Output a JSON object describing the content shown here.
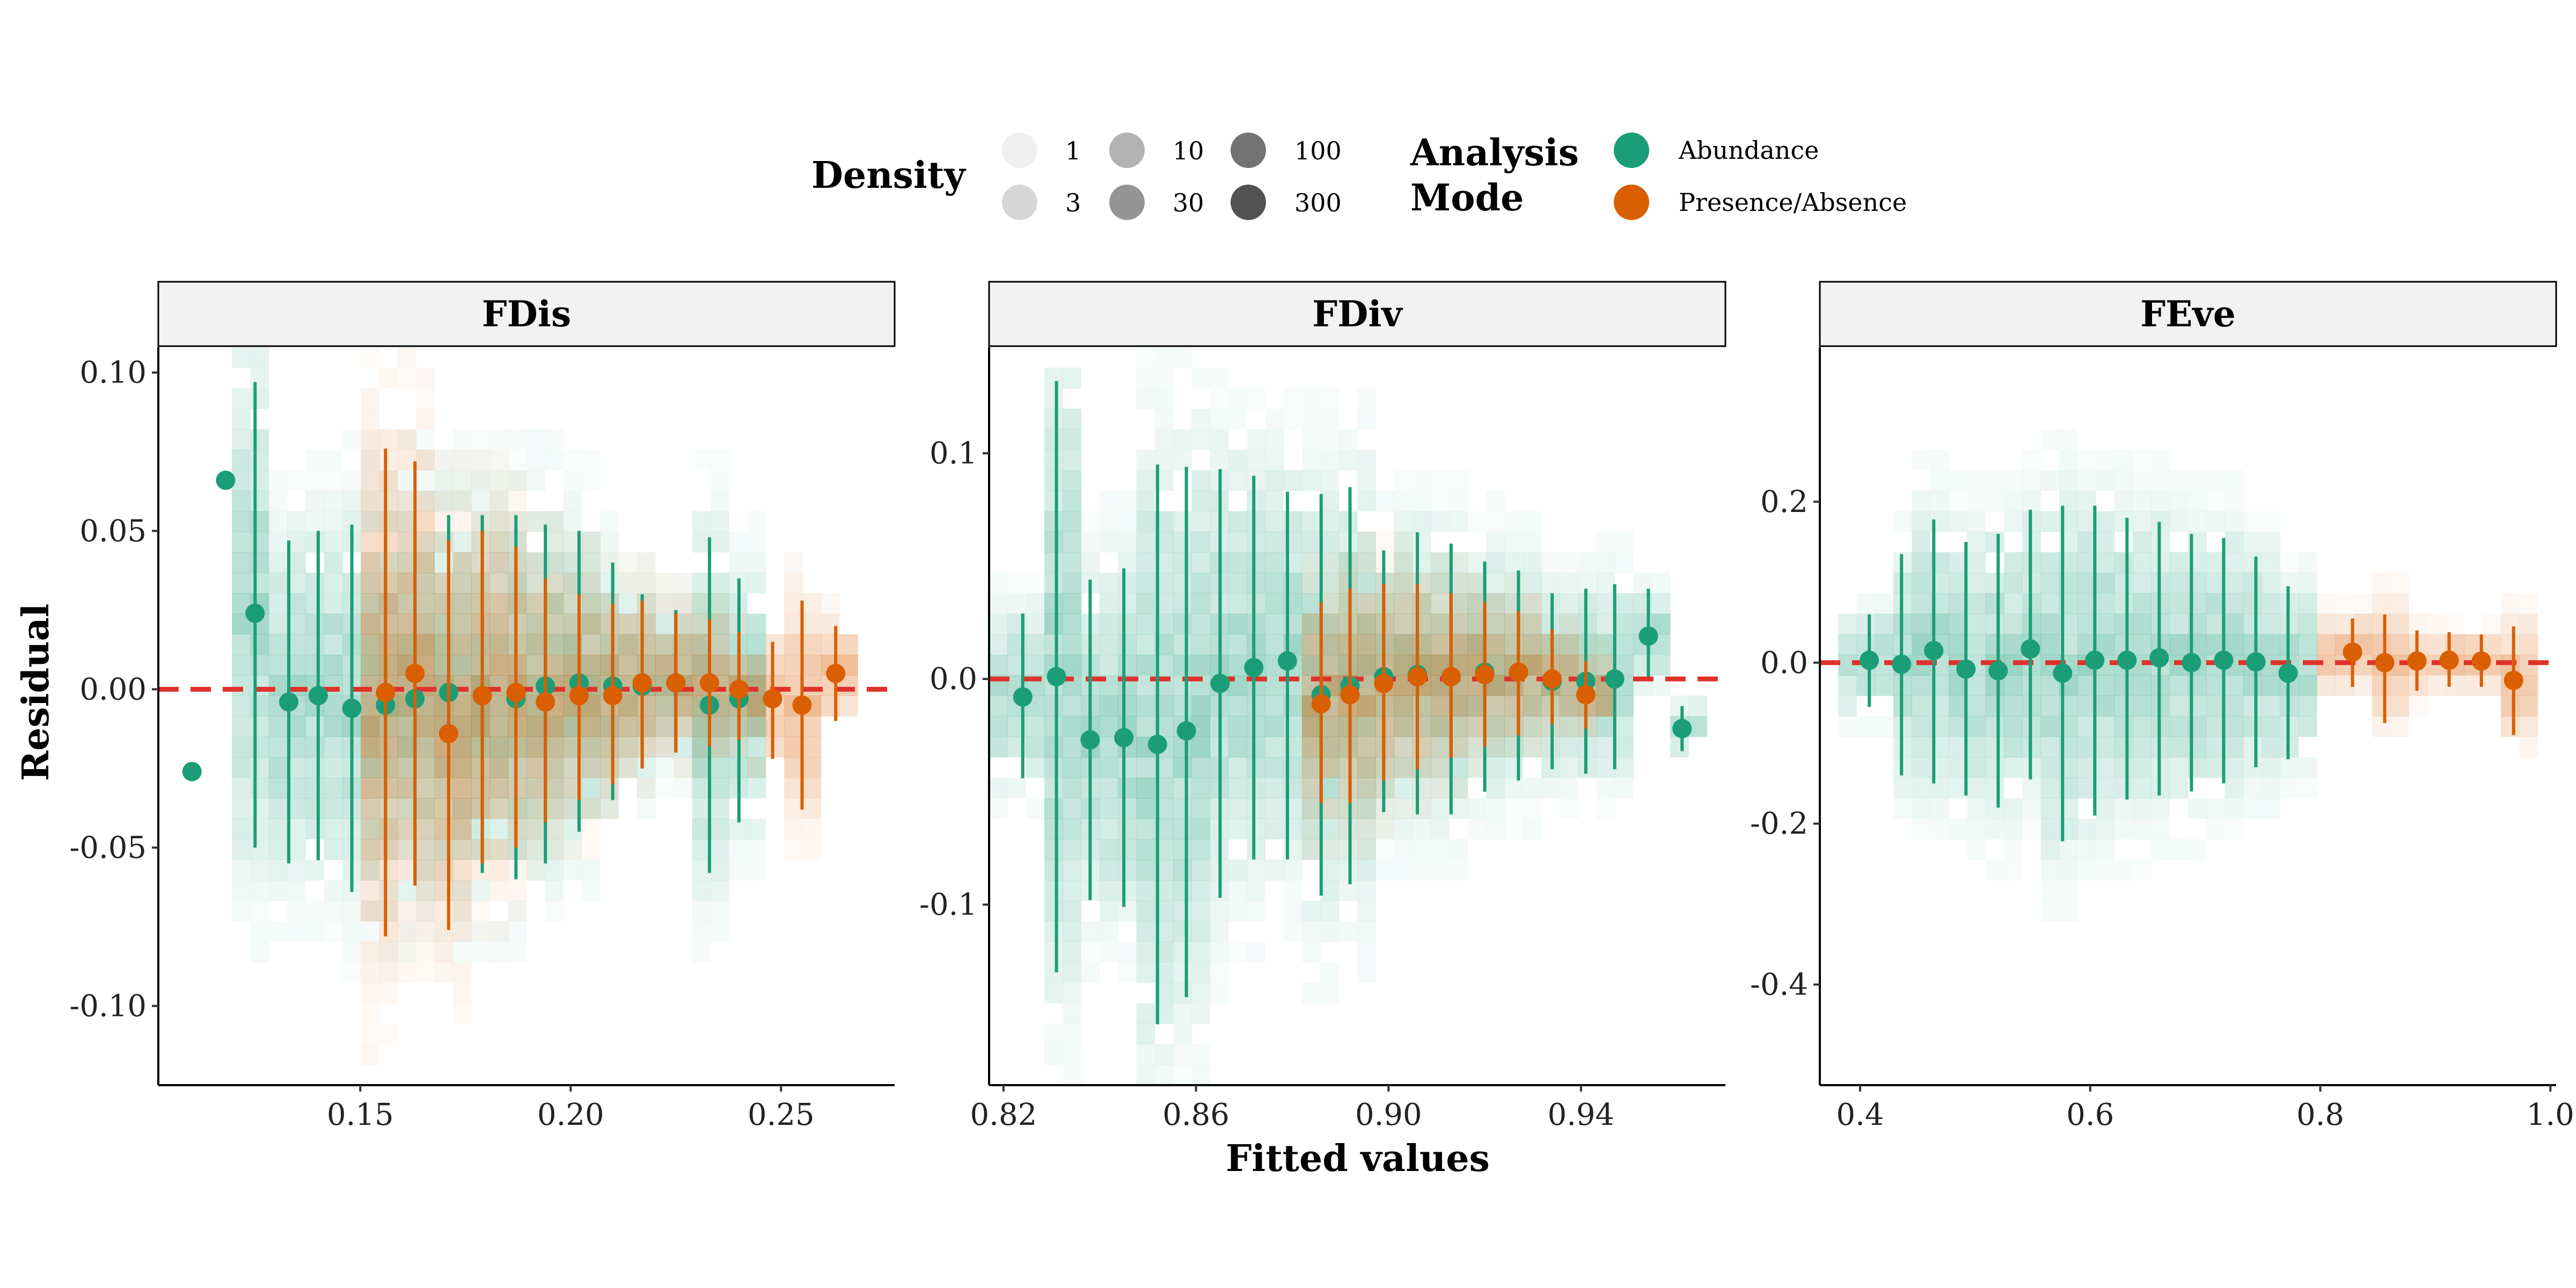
{
  "legend": {
    "density_title": "Density",
    "density_levels": [
      "1",
      "3",
      "10",
      "30",
      "100",
      "300"
    ],
    "mode_title_line1": "Analysis",
    "mode_title_line2": "Mode",
    "modes": [
      {
        "label": "Abundance",
        "color": "#1b9e77"
      },
      {
        "label": "Presence/Absence",
        "color": "#d95f02"
      }
    ]
  },
  "axes": {
    "ylabel": "Residual",
    "xlabel": "Fitted values"
  },
  "colors": {
    "abundance": "#1b9e77",
    "presence": "#d95f02",
    "zero_line": "#e0312b",
    "strip_fill": "#f2f2f2"
  },
  "chart_data": [
    {
      "type": "scatter",
      "title": "FDis",
      "xlim": [
        0.102,
        0.277
      ],
      "ylim": [
        -0.125,
        0.108
      ],
      "xticks": [
        0.15,
        0.2,
        0.25
      ],
      "xtick_labels": [
        "0.15",
        "0.20",
        "0.25"
      ],
      "yticks": [
        -0.1,
        -0.05,
        0.0,
        0.05,
        0.1
      ],
      "ytick_labels": [
        "-0.10",
        "-0.05",
        "0.00",
        "0.05",
        "0.10"
      ],
      "series": [
        {
          "name": "Abundance",
          "points": [
            {
              "x": 0.11,
              "y": -0.026
            },
            {
              "x": 0.118,
              "y": 0.066
            },
            {
              "x": 0.125,
              "y": 0.024,
              "lo": -0.05,
              "hi": 0.097
            },
            {
              "x": 0.133,
              "y": -0.004,
              "lo": -0.055,
              "hi": 0.047
            },
            {
              "x": 0.14,
              "y": -0.002,
              "lo": -0.054,
              "hi": 0.05
            },
            {
              "x": 0.148,
              "y": -0.006,
              "lo": -0.064,
              "hi": 0.052
            },
            {
              "x": 0.156,
              "y": -0.005,
              "lo": -0.06,
              "hi": 0.05
            },
            {
              "x": 0.163,
              "y": -0.003,
              "lo": -0.06,
              "hi": 0.052
            },
            {
              "x": 0.171,
              "y": -0.001,
              "lo": -0.06,
              "hi": 0.055
            },
            {
              "x": 0.179,
              "y": -0.002,
              "lo": -0.058,
              "hi": 0.055
            },
            {
              "x": 0.187,
              "y": -0.003,
              "lo": -0.06,
              "hi": 0.055
            },
            {
              "x": 0.194,
              "y": 0.001,
              "lo": -0.055,
              "hi": 0.052
            },
            {
              "x": 0.202,
              "y": 0.002,
              "lo": -0.045,
              "hi": 0.05
            },
            {
              "x": 0.21,
              "y": 0.001,
              "lo": -0.035,
              "hi": 0.04
            },
            {
              "x": 0.217,
              "y": 0.001,
              "lo": -0.025,
              "hi": 0.03
            },
            {
              "x": 0.225,
              "y": 0.002,
              "lo": -0.02,
              "hi": 0.025
            },
            {
              "x": 0.233,
              "y": -0.005,
              "lo": -0.058,
              "hi": 0.048
            },
            {
              "x": 0.24,
              "y": -0.003,
              "lo": -0.042,
              "hi": 0.035
            }
          ]
        },
        {
          "name": "Presence/Absence",
          "points": [
            {
              "x": 0.156,
              "y": -0.001,
              "lo": -0.078,
              "hi": 0.076
            },
            {
              "x": 0.163,
              "y": 0.005,
              "lo": -0.062,
              "hi": 0.072
            },
            {
              "x": 0.171,
              "y": -0.014,
              "lo": -0.076,
              "hi": 0.047
            },
            {
              "x": 0.179,
              "y": -0.002,
              "lo": -0.055,
              "hi": 0.05
            },
            {
              "x": 0.187,
              "y": -0.001,
              "lo": -0.05,
              "hi": 0.045
            },
            {
              "x": 0.194,
              "y": -0.004,
              "lo": -0.042,
              "hi": 0.035
            },
            {
              "x": 0.202,
              "y": -0.002,
              "lo": -0.035,
              "hi": 0.03
            },
            {
              "x": 0.21,
              "y": -0.002,
              "lo": -0.03,
              "hi": 0.027
            },
            {
              "x": 0.217,
              "y": 0.002,
              "lo": -0.025,
              "hi": 0.028
            },
            {
              "x": 0.225,
              "y": 0.002,
              "lo": -0.02,
              "hi": 0.024
            },
            {
              "x": 0.233,
              "y": 0.002,
              "lo": -0.018,
              "hi": 0.022
            },
            {
              "x": 0.24,
              "y": 0.0,
              "lo": -0.016,
              "hi": 0.018
            },
            {
              "x": 0.248,
              "y": -0.003,
              "lo": -0.022,
              "hi": 0.015
            },
            {
              "x": 0.255,
              "y": -0.005,
              "lo": -0.038,
              "hi": 0.028
            },
            {
              "x": 0.263,
              "y": 0.005,
              "lo": -0.01,
              "hi": 0.02
            }
          ]
        }
      ]
    },
    {
      "type": "scatter",
      "title": "FDiv",
      "xlim": [
        0.817,
        0.97
      ],
      "ylim": [
        -0.18,
        0.147
      ],
      "xticks": [
        0.82,
        0.86,
        0.9,
        0.94
      ],
      "xtick_labels": [
        "0.82",
        "0.86",
        "0.90",
        "0.94"
      ],
      "yticks": [
        -0.1,
        0.0,
        0.1
      ],
      "ytick_labels": [
        "-0.1",
        "0.0",
        "0.1"
      ],
      "series": [
        {
          "name": "Abundance",
          "points": [
            {
              "x": 0.824,
              "y": -0.008,
              "lo": -0.044,
              "hi": 0.029
            },
            {
              "x": 0.831,
              "y": 0.001,
              "lo": -0.13,
              "hi": 0.132
            },
            {
              "x": 0.838,
              "y": -0.027,
              "lo": -0.098,
              "hi": 0.044
            },
            {
              "x": 0.845,
              "y": -0.026,
              "lo": -0.101,
              "hi": 0.049
            },
            {
              "x": 0.852,
              "y": -0.029,
              "lo": -0.153,
              "hi": 0.095
            },
            {
              "x": 0.858,
              "y": -0.023,
              "lo": -0.141,
              "hi": 0.094
            },
            {
              "x": 0.865,
              "y": -0.002,
              "lo": -0.097,
              "hi": 0.093
            },
            {
              "x": 0.872,
              "y": 0.005,
              "lo": -0.08,
              "hi": 0.09
            },
            {
              "x": 0.879,
              "y": 0.008,
              "lo": -0.08,
              "hi": 0.083
            },
            {
              "x": 0.886,
              "y": -0.007,
              "lo": -0.096,
              "hi": 0.082
            },
            {
              "x": 0.892,
              "y": -0.003,
              "lo": -0.091,
              "hi": 0.085
            },
            {
              "x": 0.899,
              "y": 0.001,
              "lo": -0.059,
              "hi": 0.057
            },
            {
              "x": 0.906,
              "y": 0.002,
              "lo": -0.06,
              "hi": 0.065
            },
            {
              "x": 0.913,
              "y": 0.001,
              "lo": -0.06,
              "hi": 0.06
            },
            {
              "x": 0.92,
              "y": 0.003,
              "lo": -0.05,
              "hi": 0.052
            },
            {
              "x": 0.927,
              "y": 0.003,
              "lo": -0.045,
              "hi": 0.048
            },
            {
              "x": 0.934,
              "y": -0.001,
              "lo": -0.04,
              "hi": 0.038
            },
            {
              "x": 0.941,
              "y": -0.001,
              "lo": -0.042,
              "hi": 0.04
            },
            {
              "x": 0.947,
              "y": 0.0,
              "lo": -0.04,
              "hi": 0.042
            },
            {
              "x": 0.954,
              "y": 0.019,
              "lo": 0.001,
              "hi": 0.04
            },
            {
              "x": 0.961,
              "y": -0.022,
              "lo": -0.032,
              "hi": -0.012
            }
          ]
        },
        {
          "name": "Presence/Absence",
          "points": [
            {
              "x": 0.886,
              "y": -0.011,
              "lo": -0.055,
              "hi": 0.034
            },
            {
              "x": 0.892,
              "y": -0.007,
              "lo": -0.055,
              "hi": 0.04
            },
            {
              "x": 0.899,
              "y": -0.002,
              "lo": -0.045,
              "hi": 0.042
            },
            {
              "x": 0.906,
              "y": 0.001,
              "lo": -0.04,
              "hi": 0.042
            },
            {
              "x": 0.913,
              "y": 0.001,
              "lo": -0.035,
              "hi": 0.038
            },
            {
              "x": 0.92,
              "y": 0.002,
              "lo": -0.03,
              "hi": 0.034
            },
            {
              "x": 0.927,
              "y": 0.003,
              "lo": -0.025,
              "hi": 0.03
            },
            {
              "x": 0.934,
              "y": 0.0,
              "lo": -0.02,
              "hi": 0.022
            },
            {
              "x": 0.941,
              "y": -0.007,
              "lo": -0.022,
              "hi": 0.008
            }
          ]
        }
      ]
    },
    {
      "type": "scatter",
      "title": "FEve",
      "xlim": [
        0.365,
        1.005
      ],
      "ylim": [
        -0.525,
        0.392
      ],
      "xticks": [
        0.4,
        0.6,
        0.8,
        1.0
      ],
      "xtick_labels": [
        "0.4",
        "0.6",
        "0.8",
        "1.0"
      ],
      "yticks": [
        -0.4,
        -0.2,
        0.0,
        0.2
      ],
      "ytick_labels": [
        "-0.4",
        "-0.2",
        "0.0",
        "0.2"
      ],
      "series": [
        {
          "name": "Abundance",
          "points": [
            {
              "x": 0.408,
              "y": 0.003,
              "lo": -0.055,
              "hi": 0.06
            },
            {
              "x": 0.436,
              "y": -0.002,
              "lo": -0.14,
              "hi": 0.135
            },
            {
              "x": 0.464,
              "y": 0.015,
              "lo": -0.15,
              "hi": 0.178
            },
            {
              "x": 0.492,
              "y": -0.008,
              "lo": -0.165,
              "hi": 0.15
            },
            {
              "x": 0.52,
              "y": -0.01,
              "lo": -0.18,
              "hi": 0.16
            },
            {
              "x": 0.548,
              "y": 0.017,
              "lo": -0.145,
              "hi": 0.19
            },
            {
              "x": 0.576,
              "y": -0.013,
              "lo": -0.222,
              "hi": 0.195
            },
            {
              "x": 0.604,
              "y": 0.003,
              "lo": -0.19,
              "hi": 0.195
            },
            {
              "x": 0.632,
              "y": 0.003,
              "lo": -0.17,
              "hi": 0.18
            },
            {
              "x": 0.66,
              "y": 0.006,
              "lo": -0.165,
              "hi": 0.175
            },
            {
              "x": 0.688,
              "y": 0.0,
              "lo": -0.16,
              "hi": 0.16
            },
            {
              "x": 0.716,
              "y": 0.003,
              "lo": -0.15,
              "hi": 0.155
            },
            {
              "x": 0.744,
              "y": 0.001,
              "lo": -0.13,
              "hi": 0.132
            },
            {
              "x": 0.772,
              "y": -0.013,
              "lo": -0.12,
              "hi": 0.095
            }
          ]
        },
        {
          "name": "Presence/Absence",
          "points": [
            {
              "x": 0.828,
              "y": 0.013,
              "lo": -0.03,
              "hi": 0.055
            },
            {
              "x": 0.856,
              "y": 0.0,
              "lo": -0.075,
              "hi": 0.06
            },
            {
              "x": 0.884,
              "y": 0.002,
              "lo": -0.035,
              "hi": 0.04
            },
            {
              "x": 0.912,
              "y": 0.003,
              "lo": -0.03,
              "hi": 0.038
            },
            {
              "x": 0.94,
              "y": 0.002,
              "lo": -0.03,
              "hi": 0.035
            },
            {
              "x": 0.968,
              "y": -0.022,
              "lo": -0.09,
              "hi": 0.045
            }
          ]
        }
      ]
    }
  ]
}
